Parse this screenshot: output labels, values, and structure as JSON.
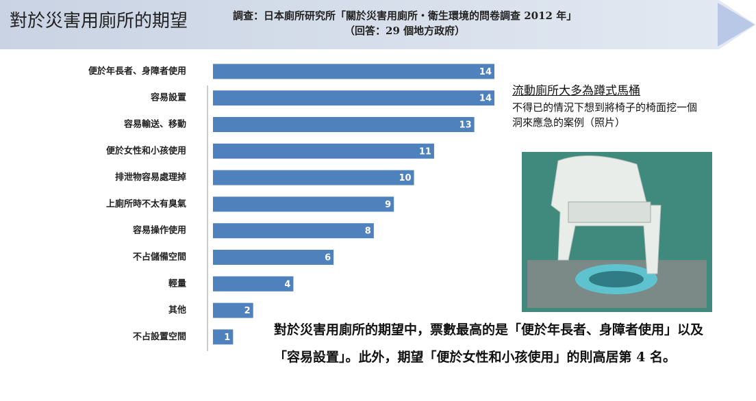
{
  "header": {
    "title": "對於災害用廁所的期望",
    "survey": "調查：日本廁所研究所「關於災害用廁所・衛生環境的問卷調查 2012 年」",
    "respondents": "（回答：29 個地方政府）"
  },
  "chart_data": {
    "type": "bar",
    "orientation": "horizontal",
    "categories": [
      "便於年長者、身障者使用",
      "容易設置",
      "容易輸送、移動",
      "便於女性和小孩使用",
      "排泄物容易處理掉",
      "上廁所時不太有臭氣",
      "容易操作使用",
      "不占儲備空間",
      "輕量",
      "其他",
      "不占設置空間"
    ],
    "values": [
      14,
      14,
      13,
      11,
      10,
      9,
      8,
      6,
      4,
      2,
      1
    ],
    "color": "#4f81bd"
  },
  "photo": {
    "caption_title": "流動廁所大多為蹲式馬桶",
    "caption": "不得已的情況下想到將椅子的椅面挖一個洞來應急的案例（照片）"
  },
  "summary": "對於災害用廁所的期望中，票數最高的是「便於年長者、身障者使用」以及「容易設置」。此外，期望「便於女性和小孩使用」的則高居第 4 名。"
}
